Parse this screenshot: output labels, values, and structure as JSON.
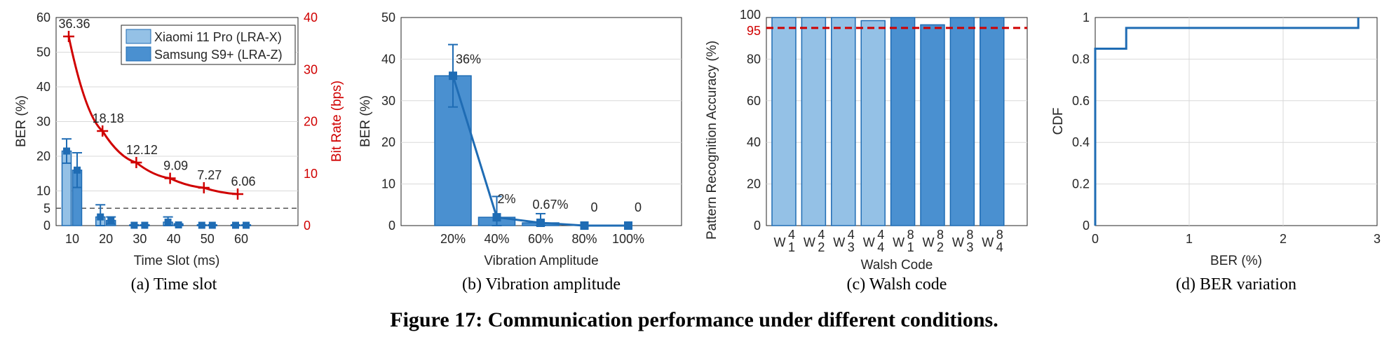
{
  "colors": {
    "light_blue": "#94c1e6",
    "dark_blue": "#4a90d0",
    "edge": "#1f6cb4",
    "red": "#d00000",
    "grid": "#d9d9d9"
  },
  "figure_caption": "Figure 17: Communication performance under different conditions.",
  "chart_data": [
    {
      "type": "bar",
      "caption": "(a)  Time slot",
      "xlabel": "Time Slot (ms)",
      "ylabel": "BER (%)",
      "y2label": "Bit Rate (bps)",
      "categories": [
        "10",
        "20",
        "30",
        "40",
        "50",
        "60"
      ],
      "ylim": [
        0,
        60
      ],
      "yticks": [
        "0",
        "5",
        "10",
        "20",
        "30",
        "40",
        "50",
        "60"
      ],
      "y2lim": [
        0,
        40
      ],
      "y2ticks": [
        "0",
        "10",
        "20",
        "30",
        "40"
      ],
      "reference_line": 5,
      "series": [
        {
          "name": "Xiaomi 11 Pro (LRA-X)",
          "values": [
            21.5,
            2.5,
            0.1,
            1.0,
            0.1,
            0.1
          ],
          "err": [
            3.5,
            3.5,
            0.1,
            1.5,
            0.1,
            0.1
          ]
        },
        {
          "name": "Samsung S9+ (LRA-Z)",
          "values": [
            16,
            1.5,
            0.1,
            0.2,
            0.1,
            0.1
          ],
          "err": [
            5,
            1,
            0.1,
            0.3,
            0.1,
            0.1
          ]
        }
      ],
      "bitrate": {
        "x": [
          10,
          20,
          30,
          40,
          50,
          60
        ],
        "values": [
          36.36,
          18.18,
          12.12,
          9.09,
          7.27,
          6.06
        ],
        "labels": [
          "36.36",
          "18.18",
          "12.12",
          "9.09",
          "7.27",
          "6.06"
        ]
      }
    },
    {
      "type": "bar",
      "caption": "(b)  Vibration amplitude",
      "xlabel": "Vibration Amplitude",
      "ylabel": "BER (%)",
      "categories": [
        "20%",
        "40%",
        "60%",
        "80%",
        "100%"
      ],
      "ylim": [
        0,
        50
      ],
      "yticks": [
        "0",
        "10",
        "20",
        "30",
        "40",
        "50"
      ],
      "values": [
        36,
        2,
        0.67,
        0,
        0
      ],
      "err": [
        7.5,
        5,
        2.2,
        0,
        0
      ],
      "data_labels": [
        "36%",
        "2%",
        "0.67%",
        "0",
        "0"
      ]
    },
    {
      "type": "bar",
      "caption": "(c)  Walsh code",
      "xlabel": "Walsh Code",
      "ylabel": "Pattern Recognition Accuracy (%)",
      "categories": [
        "W14",
        "W24",
        "W34",
        "W44",
        "W18",
        "W28",
        "W38",
        "W48"
      ],
      "category_base": [
        "W",
        "W",
        "W",
        "W",
        "W",
        "W",
        "W",
        "W"
      ],
      "category_sub": [
        "1",
        "2",
        "3",
        "4",
        "1",
        "2",
        "3",
        "4"
      ],
      "category_sup": [
        "4",
        "4",
        "4",
        "4",
        "8",
        "8",
        "8",
        "8"
      ],
      "ylim": [
        0,
        100
      ],
      "yticks": [
        "0",
        "20",
        "40",
        "60",
        "80",
        "95",
        "100"
      ],
      "values": [
        100,
        100,
        100,
        98.5,
        100,
        96.5,
        100,
        100
      ],
      "threshold": 95
    },
    {
      "type": "line",
      "caption": "(d)  BER variation",
      "xlabel": "BER (%)",
      "ylabel": "CDF",
      "xlim": [
        0,
        3
      ],
      "xticks": [
        "0",
        "1",
        "2",
        "3"
      ],
      "ylim": [
        0,
        1
      ],
      "yticks": [
        "0",
        "0.2",
        "0.4",
        "0.6",
        "0.8",
        "1"
      ],
      "x": [
        0,
        0,
        0.33,
        0.33,
        2.8,
        2.8
      ],
      "y": [
        0,
        0.85,
        0.85,
        0.95,
        0.95,
        1
      ]
    }
  ]
}
